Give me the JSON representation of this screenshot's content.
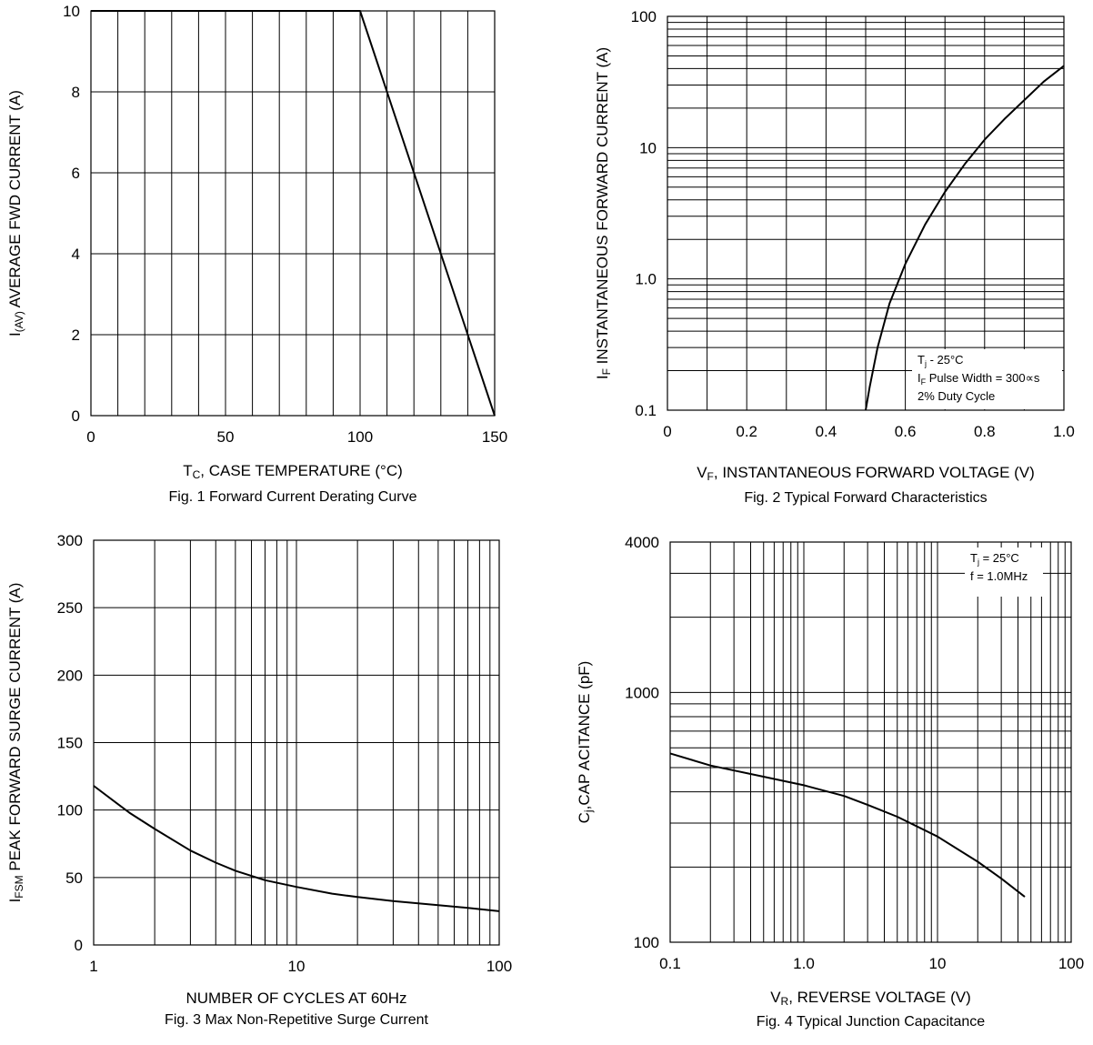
{
  "page": {
    "background": "#ffffff",
    "line_color": "#000000"
  },
  "chart_data": [
    {
      "id": "fig1",
      "type": "line",
      "caption": "Fig. 1  Forward Current Derating Curve",
      "xlabel_main": "T",
      "xlabel_sub": "C",
      "xlabel_rest": ", CASE TEMPERATURE (°C)",
      "ylabel_main": "I",
      "ylabel_sub": "(AV)",
      "ylabel_rest": "  AVERAGE FWD CURRENT (A)",
      "xscale": "linear",
      "yscale": "linear",
      "xlim": [
        0,
        150
      ],
      "ylim": [
        0,
        10
      ],
      "x_grid": [
        0,
        10,
        20,
        30,
        40,
        50,
        60,
        70,
        80,
        90,
        100,
        110,
        120,
        130,
        140,
        150
      ],
      "y_grid": [
        0,
        2,
        4,
        6,
        8,
        10
      ],
      "x_ticks": [
        {
          "v": 0,
          "label": "0"
        },
        {
          "v": 50,
          "label": "50"
        },
        {
          "v": 100,
          "label": "100"
        },
        {
          "v": 150,
          "label": "150"
        }
      ],
      "y_ticks": [
        {
          "v": 0,
          "label": "0"
        },
        {
          "v": 2,
          "label": "2"
        },
        {
          "v": 4,
          "label": "4"
        },
        {
          "v": 6,
          "label": "6"
        },
        {
          "v": 8,
          "label": "8"
        },
        {
          "v": 10,
          "label": "10"
        }
      ],
      "series": [
        {
          "x": [
            0,
            100,
            150
          ],
          "y": [
            10,
            10,
            0
          ]
        }
      ],
      "note": []
    },
    {
      "id": "fig2",
      "type": "line",
      "caption": "Fig. 2  Typical Forward Characteristics",
      "xlabel_main": "V",
      "xlabel_sub": "F",
      "xlabel_rest": ", INSTANTANEOUS FORWARD VOLTAGE (V)",
      "ylabel_main": "I",
      "ylabel_sub": "F",
      "ylabel_rest": "  INSTANTANEOUS FORWARD CURRENT (A)",
      "xscale": "linear",
      "yscale": "log",
      "xlim": [
        0,
        1.0
      ],
      "ylim": [
        0.1,
        100
      ],
      "x_grid": [
        0,
        0.1,
        0.2,
        0.3,
        0.4,
        0.5,
        0.6,
        0.7,
        0.8,
        0.9,
        1.0
      ],
      "y_grid": [
        0.1,
        0.2,
        0.3,
        0.4,
        0.5,
        0.6,
        0.7,
        0.8,
        0.9,
        1,
        2,
        3,
        4,
        5,
        6,
        7,
        8,
        9,
        10,
        20,
        30,
        40,
        50,
        60,
        70,
        80,
        90,
        100
      ],
      "x_ticks": [
        {
          "v": 0,
          "label": "0"
        },
        {
          "v": 0.2,
          "label": "0.2"
        },
        {
          "v": 0.4,
          "label": "0.4"
        },
        {
          "v": 0.6,
          "label": "0.6"
        },
        {
          "v": 0.8,
          "label": "0.8"
        },
        {
          "v": 1.0,
          "label": "1.0"
        }
      ],
      "y_ticks": [
        {
          "v": 0.1,
          "label": "0.1"
        },
        {
          "v": 1,
          "label": "1.0"
        },
        {
          "v": 10,
          "label": "10"
        },
        {
          "v": 100,
          "label": "100"
        }
      ],
      "series": [
        {
          "x": [
            0.5,
            0.51,
            0.53,
            0.56,
            0.6,
            0.65,
            0.7,
            0.75,
            0.8,
            0.85,
            0.9,
            0.95,
            1.0
          ],
          "y": [
            0.1,
            0.15,
            0.3,
            0.65,
            1.3,
            2.6,
            4.6,
            7.5,
            11.5,
            16.5,
            23,
            32,
            42
          ]
        }
      ],
      "note": [
        {
          "main": "T",
          "sub": "j",
          "rest": " - 25°C"
        },
        {
          "main": "I",
          "sub": "F",
          "rest": " Pulse Width = 300∝s"
        },
        {
          "main": "2% Duty Cycle",
          "sub": "",
          "rest": ""
        }
      ]
    },
    {
      "id": "fig3",
      "type": "line",
      "caption": "Fig. 3  Max Non-Repetitive Surge Current",
      "xlabel_main": "NUMBER OF CYCLES AT 60Hz",
      "xlabel_sub": "",
      "xlabel_rest": "",
      "ylabel_main": "I",
      "ylabel_sub": "FSM",
      "ylabel_rest": "  PEAK FORWARD SURGE CURRENT (A)",
      "xscale": "log",
      "yscale": "linear",
      "xlim": [
        1,
        100
      ],
      "ylim": [
        0,
        300
      ],
      "x_grid": [
        1,
        2,
        3,
        4,
        5,
        6,
        7,
        8,
        9,
        10,
        20,
        30,
        40,
        50,
        60,
        70,
        80,
        90,
        100
      ],
      "y_grid": [
        0,
        50,
        100,
        150,
        200,
        250,
        300
      ],
      "x_ticks": [
        {
          "v": 1,
          "label": "1"
        },
        {
          "v": 10,
          "label": "10"
        },
        {
          "v": 100,
          "label": "100"
        }
      ],
      "y_ticks": [
        {
          "v": 0,
          "label": "0"
        },
        {
          "v": 50,
          "label": "50"
        },
        {
          "v": 100,
          "label": "100"
        },
        {
          "v": 150,
          "label": "150"
        },
        {
          "v": 200,
          "label": "200"
        },
        {
          "v": 250,
          "label": "250"
        },
        {
          "v": 300,
          "label": "300"
        }
      ],
      "series": [
        {
          "x": [
            1,
            1.5,
            2,
            3,
            4,
            5,
            7,
            10,
            15,
            20,
            30,
            50,
            70,
            100
          ],
          "y": [
            118,
            98,
            86,
            70,
            61,
            55,
            48,
            43,
            38,
            35.5,
            32.5,
            29.5,
            27.5,
            25
          ]
        }
      ],
      "note": []
    },
    {
      "id": "fig4",
      "type": "line",
      "caption": "Fig. 4  Typical Junction Capacitance",
      "xlabel_main": "V",
      "xlabel_sub": "R",
      "xlabel_rest": ", REVERSE VOLTAGE (V)",
      "ylabel_main": "C",
      "ylabel_sub": "j",
      "ylabel_rest": ",CAP ACITANCE (pF)",
      "xscale": "log",
      "yscale": "log",
      "xlim": [
        0.1,
        100
      ],
      "ylim": [
        100,
        4000
      ],
      "x_grid": [
        0.1,
        0.2,
        0.3,
        0.4,
        0.5,
        0.6,
        0.7,
        0.8,
        0.9,
        1,
        2,
        3,
        4,
        5,
        6,
        7,
        8,
        9,
        10,
        20,
        30,
        40,
        50,
        60,
        70,
        80,
        90,
        100
      ],
      "y_grid": [
        100,
        200,
        300,
        400,
        500,
        600,
        700,
        800,
        900,
        1000,
        2000,
        3000,
        4000
      ],
      "x_ticks": [
        {
          "v": 0.1,
          "label": "0.1"
        },
        {
          "v": 1,
          "label": "1.0"
        },
        {
          "v": 10,
          "label": "10"
        },
        {
          "v": 100,
          "label": "100"
        }
      ],
      "y_ticks": [
        {
          "v": 100,
          "label": "100"
        },
        {
          "v": 1000,
          "label": "1000"
        },
        {
          "v": 4000,
          "label": "4000"
        }
      ],
      "series": [
        {
          "x": [
            0.1,
            0.2,
            0.5,
            1,
            2,
            3,
            5,
            10,
            20,
            30,
            45
          ],
          "y": [
            570,
            510,
            460,
            425,
            385,
            355,
            318,
            265,
            210,
            180,
            152
          ]
        }
      ],
      "note": [
        {
          "main": "T",
          "sub": "j",
          "rest": " = 25°C"
        },
        {
          "main": "f = 1.0MHz",
          "sub": "",
          "rest": ""
        }
      ]
    }
  ]
}
